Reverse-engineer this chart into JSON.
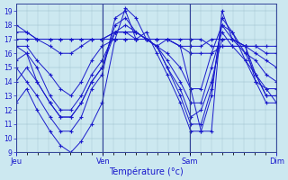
{
  "xlabel": "Température (°c)",
  "bg_color": "#cce8f0",
  "line_color": "#1a1acc",
  "ylim": [
    9,
    19.5
  ],
  "yticks": [
    9,
    10,
    11,
    12,
    13,
    14,
    15,
    16,
    17,
    18,
    19
  ],
  "day_labels": [
    "Jeu",
    "Ven",
    "Sam",
    "Dim"
  ],
  "day_positions": [
    0.0,
    0.333,
    0.667,
    1.0
  ],
  "series": [
    {
      "x": [
        0.0,
        0.04,
        0.08,
        0.13,
        0.17,
        0.21,
        0.25,
        0.29,
        0.33,
        0.38,
        0.42,
        0.46,
        0.5,
        0.54,
        0.58,
        0.63,
        0.67,
        0.71,
        0.75,
        0.79,
        0.83,
        0.88,
        0.92,
        0.96,
        1.0
      ],
      "y": [
        12.5,
        13.5,
        12.0,
        10.5,
        9.5,
        9.0,
        9.8,
        11.0,
        12.5,
        17.0,
        19.2,
        18.5,
        17.0,
        16.5,
        17.0,
        16.5,
        13.5,
        10.5,
        10.5,
        19.0,
        17.0,
        16.5,
        14.0,
        13.5,
        12.5
      ]
    },
    {
      "x": [
        0.0,
        0.04,
        0.08,
        0.13,
        0.17,
        0.21,
        0.25,
        0.29,
        0.33,
        0.38,
        0.42,
        0.46,
        0.5,
        0.54,
        0.58,
        0.63,
        0.67,
        0.71,
        0.75,
        0.79,
        0.83,
        0.88,
        0.92,
        0.96,
        1.0
      ],
      "y": [
        15.0,
        14.0,
        13.0,
        11.5,
        10.5,
        10.5,
        11.5,
        13.5,
        14.5,
        18.5,
        19.0,
        17.0,
        17.5,
        16.0,
        14.5,
        12.5,
        10.5,
        10.5,
        13.0,
        18.5,
        17.5,
        15.5,
        14.0,
        12.5,
        12.5
      ]
    },
    {
      "x": [
        0.0,
        0.04,
        0.08,
        0.13,
        0.17,
        0.21,
        0.25,
        0.29,
        0.33,
        0.38,
        0.42,
        0.46,
        0.5,
        0.54,
        0.58,
        0.63,
        0.67,
        0.71,
        0.75,
        0.79,
        0.83,
        0.88,
        0.92,
        0.96,
        1.0
      ],
      "y": [
        14.0,
        15.0,
        14.0,
        12.5,
        11.5,
        11.5,
        12.5,
        14.0,
        15.0,
        18.0,
        18.5,
        17.5,
        17.0,
        16.5,
        15.0,
        13.0,
        11.0,
        11.0,
        13.5,
        18.0,
        17.5,
        16.0,
        14.5,
        13.0,
        13.0
      ]
    },
    {
      "x": [
        0.0,
        0.04,
        0.08,
        0.13,
        0.17,
        0.21,
        0.25,
        0.29,
        0.33,
        0.38,
        0.42,
        0.46,
        0.5,
        0.54,
        0.58,
        0.63,
        0.67,
        0.71,
        0.75,
        0.79,
        0.83,
        0.88,
        0.92,
        0.96,
        1.0
      ],
      "y": [
        16.5,
        16.0,
        14.0,
        12.5,
        11.5,
        11.5,
        12.5,
        14.0,
        15.0,
        17.5,
        18.0,
        17.5,
        17.0,
        16.5,
        15.0,
        13.5,
        11.5,
        12.0,
        14.0,
        17.0,
        17.0,
        16.5,
        14.5,
        13.0,
        13.0
      ]
    },
    {
      "x": [
        0.0,
        0.04,
        0.08,
        0.13,
        0.17,
        0.21,
        0.25,
        0.29,
        0.33,
        0.38,
        0.42,
        0.46,
        0.5,
        0.54,
        0.58,
        0.63,
        0.67,
        0.71,
        0.75,
        0.79,
        0.83,
        0.88,
        0.92,
        0.96,
        1.0
      ],
      "y": [
        15.5,
        16.0,
        15.0,
        13.0,
        12.0,
        12.0,
        13.0,
        14.5,
        15.5,
        17.5,
        17.5,
        17.0,
        17.0,
        16.5,
        15.5,
        14.0,
        12.5,
        12.5,
        15.0,
        17.5,
        16.5,
        15.5,
        14.5,
        13.5,
        13.5
      ]
    },
    {
      "x": [
        0.0,
        0.04,
        0.08,
        0.13,
        0.17,
        0.21,
        0.25,
        0.29,
        0.33,
        0.38,
        0.42,
        0.46,
        0.5,
        0.54,
        0.58,
        0.63,
        0.67,
        0.71,
        0.75,
        0.79,
        0.83,
        0.88,
        0.92,
        0.96,
        1.0
      ],
      "y": [
        16.5,
        16.5,
        15.5,
        14.5,
        13.5,
        13.0,
        14.0,
        15.5,
        16.5,
        17.0,
        17.0,
        17.0,
        17.0,
        16.5,
        16.0,
        15.0,
        13.5,
        13.5,
        16.0,
        18.0,
        17.0,
        16.0,
        15.5,
        14.5,
        14.0
      ]
    },
    {
      "x": [
        0.0,
        0.04,
        0.08,
        0.13,
        0.17,
        0.21,
        0.25,
        0.29,
        0.33,
        0.38,
        0.42,
        0.46,
        0.5,
        0.54,
        0.58,
        0.63,
        0.67,
        0.71,
        0.75,
        0.79,
        0.83,
        0.88,
        0.92,
        0.96,
        1.0
      ],
      "y": [
        18.0,
        17.5,
        17.0,
        16.5,
        16.0,
        16.0,
        16.5,
        17.0,
        17.0,
        17.5,
        17.5,
        17.5,
        17.0,
        17.0,
        17.0,
        16.5,
        16.5,
        16.5,
        17.0,
        17.0,
        17.0,
        16.5,
        16.0,
        15.5,
        15.0
      ]
    },
    {
      "x": [
        0.0,
        0.04,
        0.08,
        0.13,
        0.17,
        0.21,
        0.25,
        0.29,
        0.33,
        0.38,
        0.42,
        0.46,
        0.5,
        0.54,
        0.58,
        0.63,
        0.67,
        0.71,
        0.75,
        0.79,
        0.83,
        0.88,
        0.92,
        0.96,
        1.0
      ],
      "y": [
        17.0,
        17.0,
        17.0,
        17.0,
        17.0,
        17.0,
        17.0,
        17.0,
        17.0,
        17.0,
        17.0,
        17.0,
        17.0,
        17.0,
        17.0,
        17.0,
        17.0,
        17.0,
        16.5,
        16.5,
        16.5,
        16.5,
        16.5,
        16.5,
        16.5
      ]
    },
    {
      "x": [
        0.0,
        0.04,
        0.08,
        0.13,
        0.17,
        0.21,
        0.25,
        0.29,
        0.33,
        0.38,
        0.42,
        0.46,
        0.5,
        0.54,
        0.58,
        0.63,
        0.67,
        0.71,
        0.75,
        0.79,
        0.83,
        0.88,
        0.92,
        0.96,
        1.0
      ],
      "y": [
        17.5,
        17.5,
        17.0,
        17.0,
        17.0,
        17.0,
        17.0,
        17.0,
        17.0,
        17.5,
        17.5,
        17.5,
        17.0,
        17.0,
        17.0,
        16.5,
        16.0,
        16.0,
        16.0,
        16.5,
        16.5,
        16.5,
        16.5,
        16.0,
        16.0
      ]
    }
  ]
}
